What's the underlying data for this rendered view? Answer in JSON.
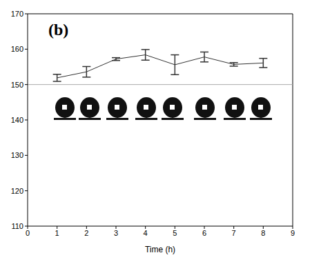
{
  "chart_data": {
    "type": "line",
    "title": "(b)",
    "x_label": "Time (h)",
    "x": [
      1,
      2,
      3,
      4,
      5,
      6,
      7,
      8
    ],
    "values": [
      151.9,
      153.6,
      157.2,
      158.4,
      155.6,
      157.8,
      155.7,
      156.1
    ],
    "errors": [
      1.0,
      1.5,
      0.4,
      1.5,
      2.8,
      1.4,
      0.5,
      1.3
    ],
    "color": "#333333",
    "xlim": [
      0,
      9
    ],
    "xticks": [
      0,
      1,
      2,
      3,
      4,
      5,
      6,
      7,
      8,
      9
    ],
    "ylim": [
      110,
      170
    ],
    "yticks": [
      110,
      120,
      130,
      140,
      150,
      160,
      170
    ],
    "hline": 150
  }
}
